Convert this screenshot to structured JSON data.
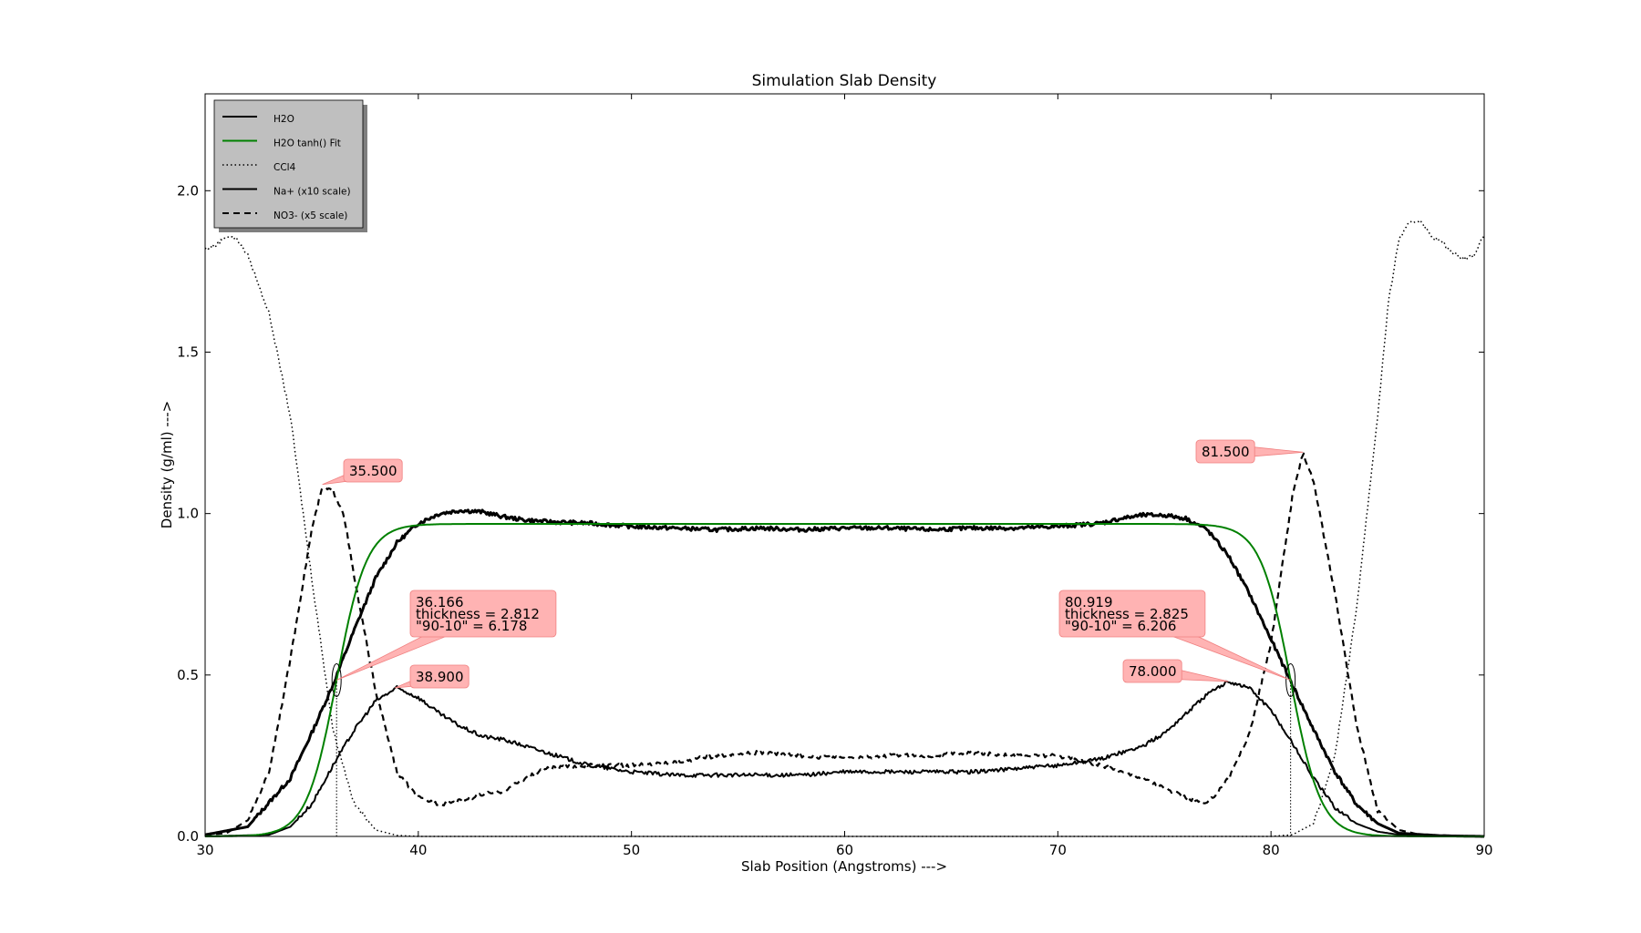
{
  "chart_data": {
    "type": "line",
    "title": "Simulation Slab Density",
    "xlabel": "Slab Position (Angstroms) --->",
    "ylabel": "Density (g/ml) --->",
    "xlim": [
      30,
      90
    ],
    "ylim": [
      0.0,
      2.3
    ],
    "xticks": [
      30,
      40,
      50,
      60,
      70,
      80,
      90
    ],
    "yticks": [
      0.0,
      0.5,
      1.0,
      1.5,
      2.0
    ],
    "xtick_labels": [
      "30",
      "40",
      "50",
      "60",
      "70",
      "80",
      "90"
    ],
    "ytick_labels": [
      "0.0",
      "0.5",
      "1.0",
      "1.5",
      "2.0"
    ],
    "grid": false,
    "legend_position": "top-left",
    "series": [
      {
        "name": "H2O",
        "color": "#000000",
        "style": "solid-thick",
        "points": [
          [
            30,
            0.005
          ],
          [
            32,
            0.03
          ],
          [
            34,
            0.18
          ],
          [
            35,
            0.32
          ],
          [
            36,
            0.47
          ],
          [
            37,
            0.64
          ],
          [
            38,
            0.8
          ],
          [
            39,
            0.91
          ],
          [
            40,
            0.97
          ],
          [
            41,
            1.0
          ],
          [
            42,
            1.01
          ],
          [
            43,
            1.005
          ],
          [
            44,
            0.99
          ],
          [
            45,
            0.98
          ],
          [
            46,
            0.975
          ],
          [
            48,
            0.97
          ],
          [
            50,
            0.96
          ],
          [
            52,
            0.955
          ],
          [
            54,
            0.95
          ],
          [
            56,
            0.955
          ],
          [
            58,
            0.95
          ],
          [
            60,
            0.955
          ],
          [
            62,
            0.955
          ],
          [
            64,
            0.95
          ],
          [
            66,
            0.955
          ],
          [
            68,
            0.955
          ],
          [
            70,
            0.96
          ],
          [
            72,
            0.97
          ],
          [
            73,
            0.985
          ],
          [
            74,
            0.995
          ],
          [
            75,
            0.995
          ],
          [
            76,
            0.985
          ],
          [
            77,
            0.95
          ],
          [
            78,
            0.87
          ],
          [
            79,
            0.75
          ],
          [
            80,
            0.61
          ],
          [
            81,
            0.47
          ],
          [
            82,
            0.33
          ],
          [
            83,
            0.2
          ],
          [
            84,
            0.1
          ],
          [
            85,
            0.04
          ],
          [
            86,
            0.01
          ],
          [
            88,
            0.002
          ],
          [
            90,
            0.0
          ]
        ]
      },
      {
        "name": "H2O tanh() Fit",
        "color": "#008000",
        "style": "solid",
        "fit": {
          "rho": 0.968,
          "left_center": 36.166,
          "right_center": 80.919,
          "left_width": 2.812,
          "right_width": 2.825
        }
      },
      {
        "name": "CCl4",
        "color": "#000000",
        "style": "dotted",
        "points": [
          [
            30,
            1.82
          ],
          [
            30.5,
            1.83
          ],
          [
            31,
            1.86
          ],
          [
            31.5,
            1.85
          ],
          [
            32,
            1.8
          ],
          [
            33,
            1.62
          ],
          [
            34,
            1.3
          ],
          [
            35,
            0.8
          ],
          [
            36,
            0.33
          ],
          [
            37,
            0.1
          ],
          [
            38,
            0.02
          ],
          [
            39,
            0.003
          ],
          [
            40,
            0.0
          ],
          [
            80,
            0.0
          ],
          [
            81,
            0.005
          ],
          [
            82,
            0.04
          ],
          [
            83,
            0.25
          ],
          [
            84,
            0.7
          ],
          [
            85,
            1.3
          ],
          [
            85.5,
            1.65
          ],
          [
            86,
            1.85
          ],
          [
            86.5,
            1.9
          ],
          [
            87,
            1.91
          ],
          [
            87.5,
            1.86
          ],
          [
            88,
            1.84
          ],
          [
            88.5,
            1.81
          ],
          [
            89,
            1.79
          ],
          [
            89.5,
            1.8
          ],
          [
            90,
            1.86
          ]
        ]
      },
      {
        "name": "Na+ (x10 scale)",
        "color": "#000000",
        "style": "solid",
        "points": [
          [
            30,
            0.0
          ],
          [
            33,
            0.005
          ],
          [
            34,
            0.03
          ],
          [
            35,
            0.1
          ],
          [
            36,
            0.22
          ],
          [
            37,
            0.33
          ],
          [
            38,
            0.42
          ],
          [
            39,
            0.46
          ],
          [
            40,
            0.43
          ],
          [
            41,
            0.38
          ],
          [
            42,
            0.34
          ],
          [
            43,
            0.31
          ],
          [
            44,
            0.3
          ],
          [
            45,
            0.28
          ],
          [
            46,
            0.26
          ],
          [
            47,
            0.24
          ],
          [
            48,
            0.22
          ],
          [
            50,
            0.2
          ],
          [
            52,
            0.19
          ],
          [
            54,
            0.19
          ],
          [
            56,
            0.19
          ],
          [
            58,
            0.19
          ],
          [
            60,
            0.2
          ],
          [
            62,
            0.2
          ],
          [
            64,
            0.2
          ],
          [
            66,
            0.2
          ],
          [
            68,
            0.21
          ],
          [
            70,
            0.22
          ],
          [
            72,
            0.24
          ],
          [
            74,
            0.28
          ],
          [
            75,
            0.32
          ],
          [
            76,
            0.38
          ],
          [
            77,
            0.44
          ],
          [
            78,
            0.48
          ],
          [
            79,
            0.46
          ],
          [
            80,
            0.39
          ],
          [
            81,
            0.29
          ],
          [
            82,
            0.18
          ],
          [
            83,
            0.09
          ],
          [
            84,
            0.04
          ],
          [
            85,
            0.015
          ],
          [
            86,
            0.005
          ],
          [
            88,
            0.0
          ],
          [
            90,
            0.0
          ]
        ]
      },
      {
        "name": "NO3- (x5 scale)",
        "color": "#000000",
        "style": "dashed",
        "points": [
          [
            30,
            0.005
          ],
          [
            31,
            0.01
          ],
          [
            32,
            0.05
          ],
          [
            33,
            0.2
          ],
          [
            34,
            0.55
          ],
          [
            35,
            0.95
          ],
          [
            35.5,
            1.08
          ],
          [
            36,
            1.07
          ],
          [
            36.5,
            1.0
          ],
          [
            37,
            0.8
          ],
          [
            38,
            0.45
          ],
          [
            39,
            0.2
          ],
          [
            40,
            0.12
          ],
          [
            41,
            0.1
          ],
          [
            42,
            0.11
          ],
          [
            43,
            0.13
          ],
          [
            44,
            0.14
          ],
          [
            45,
            0.18
          ],
          [
            46,
            0.21
          ],
          [
            48,
            0.22
          ],
          [
            50,
            0.22
          ],
          [
            52,
            0.23
          ],
          [
            54,
            0.25
          ],
          [
            56,
            0.26
          ],
          [
            58,
            0.25
          ],
          [
            60,
            0.24
          ],
          [
            62,
            0.25
          ],
          [
            64,
            0.25
          ],
          [
            66,
            0.26
          ],
          [
            68,
            0.25
          ],
          [
            70,
            0.25
          ],
          [
            72,
            0.22
          ],
          [
            74,
            0.18
          ],
          [
            76,
            0.12
          ],
          [
            77,
            0.1
          ],
          [
            78,
            0.18
          ],
          [
            79,
            0.32
          ],
          [
            80,
            0.6
          ],
          [
            81,
            1.05
          ],
          [
            81.5,
            1.19
          ],
          [
            82,
            1.1
          ],
          [
            83,
            0.75
          ],
          [
            84,
            0.35
          ],
          [
            85,
            0.08
          ],
          [
            86,
            0.02
          ],
          [
            87,
            0.005
          ],
          [
            90,
            0.0
          ]
        ]
      }
    ],
    "annotations": [
      {
        "lines": [
          "35.500"
        ],
        "x": 35.5,
        "y": 1.09
      },
      {
        "lines": [
          "36.166",
          "thickness = 2.812",
          "\"90-10\" = 6.178"
        ],
        "x": 36.166,
        "y": 0.484
      },
      {
        "lines": [
          "38.900"
        ],
        "x": 38.9,
        "y": 0.46
      },
      {
        "lines": [
          "81.500"
        ],
        "x": 81.5,
        "y": 1.19
      },
      {
        "lines": [
          "80.919",
          "thickness = 2.825",
          "\"90-10\" = 6.206"
        ],
        "x": 80.919,
        "y": 0.484
      },
      {
        "lines": [
          "78.000"
        ],
        "x": 78.0,
        "y": 0.48
      }
    ],
    "markers": [
      {
        "x": 36.166,
        "y": 0.484
      },
      {
        "x": 80.919,
        "y": 0.484
      }
    ],
    "vlines": [
      36.166,
      80.919
    ],
    "annotation_color": "#ffb3b3"
  }
}
